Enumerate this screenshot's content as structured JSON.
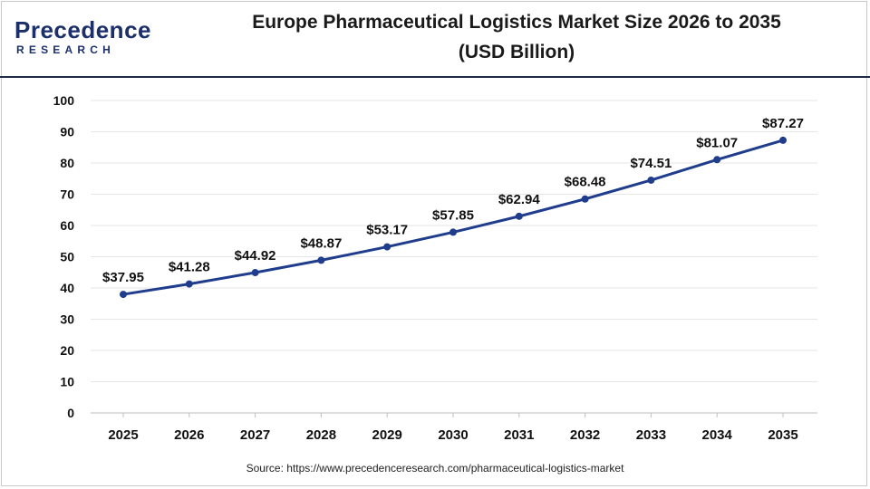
{
  "header": {
    "logo_word": "Precedence",
    "logo_sub": "RESEARCH",
    "title_line1": "Europe Pharmaceutical Logistics Market Size 2026 to 2035",
    "title_line2": "(USD Billion)"
  },
  "source_text": "Source: https://www.precedenceresearch.com/pharmaceutical-logistics-market",
  "colors": {
    "line": "#1f3d8c",
    "header_rule": "#1f2a44",
    "brand": "#1b2f6b"
  },
  "chart_data": {
    "type": "line",
    "title": "Europe Pharmaceutical Logistics Market Size 2026 to 2035 (USD Billion)",
    "categories": [
      "2025",
      "2026",
      "2027",
      "2028",
      "2029",
      "2030",
      "2031",
      "2032",
      "2033",
      "2034",
      "2035"
    ],
    "values": [
      37.95,
      41.28,
      44.92,
      48.87,
      53.17,
      57.85,
      62.94,
      68.48,
      74.51,
      81.07,
      87.27
    ],
    "labels": [
      "$37.95",
      "$41.28",
      "$44.92",
      "$48.87",
      "$53.17",
      "$57.85",
      "$62.94",
      "$68.48",
      "$74.51",
      "$81.07",
      "$87.27"
    ],
    "yticks": [
      "0",
      "10",
      "20",
      "30",
      "40",
      "50",
      "60",
      "70",
      "80",
      "90",
      "100"
    ],
    "ylim": [
      0,
      100
    ],
    "grid": true,
    "legend": "none"
  }
}
